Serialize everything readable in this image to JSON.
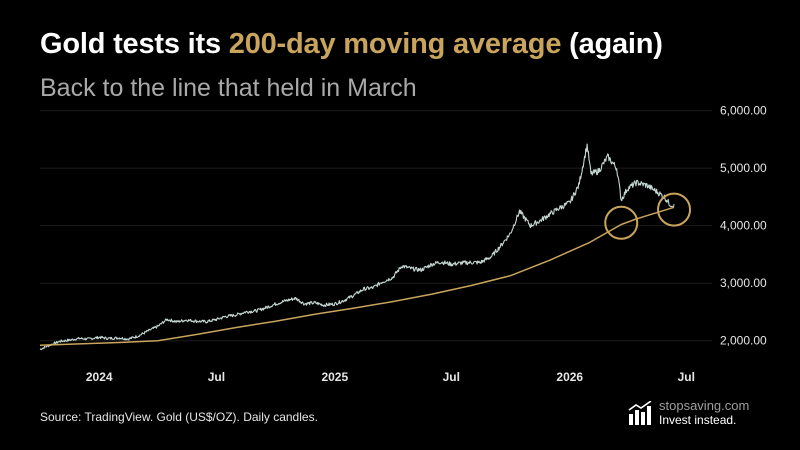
{
  "header": {
    "title_pre": "Gold tests its ",
    "title_accent": "200-day moving average",
    "title_post": " (again)",
    "subtitle": "Back to the line that held in March"
  },
  "footer": {
    "source": "Source: TradingView. Gold (US$/OZ). Daily candles.",
    "brand_name": "stopsaving.com",
    "brand_tagline": "Invest instead."
  },
  "colors": {
    "accent": "#c9a45c",
    "price_line": "#cfe3de",
    "ma_line": "#c9a45c",
    "background": "#000000"
  },
  "chart_data": {
    "type": "line",
    "title": "",
    "xlabel": "",
    "ylabel": "",
    "x_ticks": [
      "2024",
      "Jul",
      "2025",
      "Jul",
      "2026",
      "Jul"
    ],
    "y_ticks": [
      "6,000.00",
      "5,000.00",
      "4,000.00",
      "3,000.00",
      "2,000.00"
    ],
    "ylim": [
      1700,
      6150
    ],
    "xlim": [
      "2023-10-01",
      "2026-08-10"
    ],
    "grid": true,
    "legend": "none",
    "series": [
      {
        "name": "",
        "style": "daily candles",
        "x": [
          "2023-10-01",
          "2023-10-15",
          "2023-11-01",
          "2023-11-15",
          "2023-12-01",
          "2023-12-15",
          "2024-01-01",
          "2024-01-15",
          "2024-02-01",
          "2024-02-15",
          "2024-03-01",
          "2024-03-15",
          "2024-04-01",
          "2024-04-15",
          "2024-05-01",
          "2024-05-15",
          "2024-06-01",
          "2024-06-15",
          "2024-07-01",
          "2024-07-15",
          "2024-08-01",
          "2024-08-15",
          "2024-09-01",
          "2024-09-15",
          "2024-10-01",
          "2024-10-15",
          "2024-11-01",
          "2024-11-15",
          "2024-12-01",
          "2024-12-15",
          "2025-01-01",
          "2025-01-15",
          "2025-02-01",
          "2025-02-15",
          "2025-03-01",
          "2025-03-15",
          "2025-04-01",
          "2025-04-15",
          "2025-05-01",
          "2025-05-15",
          "2025-06-01",
          "2025-06-15",
          "2025-07-01",
          "2025-07-15",
          "2025-08-01",
          "2025-08-15",
          "2025-09-01",
          "2025-09-15",
          "2025-10-01",
          "2025-10-15",
          "2025-11-01",
          "2025-11-15",
          "2025-12-01",
          "2025-12-15",
          "2026-01-01",
          "2026-01-15",
          "2026-01-28",
          "2026-02-03",
          "2026-02-15",
          "2026-03-01",
          "2026-03-15",
          "2026-03-22",
          "2026-04-01",
          "2026-04-15",
          "2026-05-01",
          "2026-05-15",
          "2026-05-28",
          "2026-06-05",
          "2026-06-12"
        ],
        "values": [
          1850,
          1920,
          1990,
          2010,
          2040,
          2030,
          2060,
          2040,
          2050,
          2030,
          2080,
          2160,
          2250,
          2370,
          2330,
          2360,
          2340,
          2330,
          2370,
          2420,
          2450,
          2500,
          2520,
          2570,
          2640,
          2690,
          2740,
          2640,
          2660,
          2620,
          2640,
          2700,
          2800,
          2900,
          2920,
          3020,
          3100,
          3300,
          3250,
          3230,
          3330,
          3370,
          3330,
          3350,
          3360,
          3360,
          3460,
          3640,
          3870,
          4250,
          4000,
          4080,
          4200,
          4300,
          4400,
          4700,
          5400,
          4900,
          4950,
          5200,
          5000,
          4450,
          4650,
          4750,
          4700,
          4600,
          4500,
          4380,
          4340
        ]
      },
      {
        "name": "200-day moving average",
        "x": [
          "2023-10-01",
          "2023-12-01",
          "2024-02-01",
          "2024-04-01",
          "2024-06-01",
          "2024-08-01",
          "2024-10-01",
          "2024-12-01",
          "2025-02-01",
          "2025-04-01",
          "2025-06-01",
          "2025-08-01",
          "2025-10-01",
          "2025-12-01",
          "2026-02-01",
          "2026-03-22",
          "2026-04-15",
          "2026-06-12"
        ],
        "values": [
          1920,
          1945,
          1970,
          2000,
          2110,
          2230,
          2340,
          2460,
          2570,
          2680,
          2810,
          2960,
          3130,
          3400,
          3710,
          4020,
          4120,
          4320
        ]
      }
    ],
    "annotations": [
      {
        "type": "circle",
        "x": "2026-03-22",
        "y": 4050
      },
      {
        "type": "circle",
        "x": "2026-06-12",
        "y": 4280
      }
    ]
  }
}
